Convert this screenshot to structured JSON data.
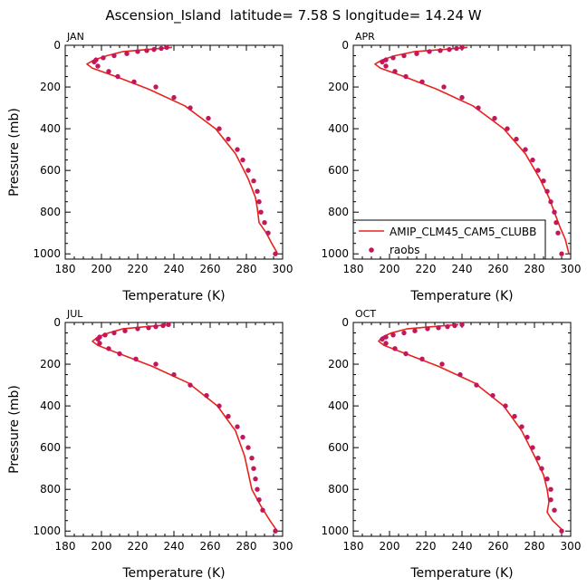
{
  "figure_title": "Ascension_Island  latitude= 7.58 S longitude= 14.24 W",
  "colors": {
    "model": "#e8231e",
    "obs": "#c2185b",
    "axis": "#000000"
  },
  "legend": {
    "model_label": "AMIP_CLM45_CAM5_CLUBB",
    "obs_label": "raobs"
  },
  "chart_data": [
    {
      "type": "line",
      "panel_label": "JAN",
      "xlabel": "Temperature (K)",
      "ylabel": "Pressure (mb)",
      "xlim": [
        180,
        300
      ],
      "ylim": [
        1025,
        0
      ],
      "x_ticks": [
        180,
        200,
        220,
        240,
        260,
        280,
        300
      ],
      "y_ticks": [
        0,
        200,
        400,
        600,
        800,
        1000
      ],
      "series": [
        {
          "name": "AMIP_CLM45_CAM5_CLUBB",
          "kind": "line",
          "x": [
            239,
            226,
            212,
            203,
            196,
            192,
            195,
            208,
            226,
            246,
            263,
            274,
            281,
            285,
            286,
            287,
            291,
            294,
            297
          ],
          "y": [
            10,
            20,
            30,
            50,
            70,
            90,
            110,
            150,
            210,
            290,
            400,
            520,
            640,
            730,
            780,
            850,
            900,
            950,
            995
          ]
        },
        {
          "name": "raobs",
          "kind": "scatter",
          "x": [
            236,
            233,
            229,
            225,
            220,
            214,
            207,
            201,
            197,
            196,
            198,
            204,
            209,
            218,
            230,
            240,
            249,
            259,
            265,
            270,
            275,
            278,
            281,
            284,
            286,
            287,
            288,
            290,
            292,
            296
          ],
          "y": [
            10,
            15,
            20,
            25,
            30,
            40,
            50,
            60,
            70,
            80,
            100,
            125,
            150,
            175,
            200,
            250,
            300,
            350,
            400,
            450,
            500,
            550,
            600,
            650,
            700,
            750,
            800,
            850,
            900,
            1000
          ]
        }
      ]
    },
    {
      "type": "line",
      "panel_label": "APR",
      "xlabel": "Temperature (K)",
      "ylabel": "",
      "xlim": [
        180,
        300
      ],
      "ylim": [
        1025,
        0
      ],
      "x_ticks": [
        180,
        200,
        220,
        240,
        260,
        280,
        300
      ],
      "y_ticks": [
        0,
        200,
        400,
        600,
        800,
        1000
      ],
      "series": [
        {
          "name": "AMIP_CLM45_CAM5_CLUBB",
          "kind": "line",
          "x": [
            243,
            230,
            214,
            203,
            196,
            192,
            195,
            208,
            226,
            246,
            263,
            275,
            283,
            288,
            291,
            294,
            297,
            299
          ],
          "y": [
            10,
            20,
            30,
            50,
            70,
            90,
            110,
            150,
            210,
            290,
            400,
            520,
            640,
            730,
            800,
            870,
            930,
            1000
          ]
        },
        {
          "name": "raobs",
          "kind": "scatter",
          "x": [
            240,
            237,
            233,
            228,
            222,
            215,
            208,
            202,
            198,
            196,
            198,
            203,
            209,
            218,
            230,
            240,
            249,
            258,
            265,
            270,
            275,
            279,
            282,
            285,
            287,
            289,
            291,
            292,
            293,
            295
          ],
          "y": [
            10,
            15,
            20,
            25,
            30,
            40,
            50,
            60,
            70,
            80,
            100,
            125,
            150,
            175,
            200,
            250,
            300,
            350,
            400,
            450,
            500,
            550,
            600,
            650,
            700,
            750,
            800,
            850,
            900,
            1000
          ]
        }
      ]
    },
    {
      "type": "line",
      "panel_label": "JUL",
      "xlabel": "Temperature (K)",
      "ylabel": "Pressure (mb)",
      "xlim": [
        180,
        300
      ],
      "ylim": [
        1025,
        0
      ],
      "x_ticks": [
        180,
        200,
        220,
        240,
        260,
        280,
        300
      ],
      "y_ticks": [
        0,
        200,
        400,
        600,
        800,
        1000
      ],
      "series": [
        {
          "name": "AMIP_CLM45_CAM5_CLUBB",
          "kind": "line",
          "x": [
            238,
            225,
            212,
            204,
            198,
            195,
            198,
            210,
            228,
            248,
            264,
            274,
            279,
            281,
            283,
            288,
            293,
            297
          ],
          "y": [
            10,
            20,
            30,
            50,
            70,
            90,
            110,
            150,
            210,
            290,
            400,
            520,
            640,
            720,
            800,
            880,
            950,
            1000
          ]
        },
        {
          "name": "raobs",
          "kind": "scatter",
          "x": [
            237,
            234,
            230,
            226,
            220,
            213,
            207,
            202,
            199,
            198,
            199,
            204,
            210,
            219,
            230,
            240,
            249,
            258,
            265,
            270,
            275,
            278,
            281,
            283,
            284,
            285,
            286,
            287,
            289,
            296
          ],
          "y": [
            10,
            15,
            20,
            25,
            30,
            40,
            50,
            60,
            70,
            80,
            100,
            125,
            150,
            175,
            200,
            250,
            300,
            350,
            400,
            450,
            500,
            550,
            600,
            650,
            700,
            750,
            800,
            850,
            900,
            1000
          ]
        }
      ]
    },
    {
      "type": "line",
      "panel_label": "OCT",
      "xlabel": "Temperature (K)",
      "ylabel": "",
      "xlim": [
        180,
        300
      ],
      "ylim": [
        1025,
        0
      ],
      "x_ticks": [
        180,
        200,
        220,
        240,
        260,
        280,
        300
      ],
      "y_ticks": [
        0,
        200,
        400,
        600,
        800,
        1000
      ],
      "series": [
        {
          "name": "AMIP_CLM45_CAM5_CLUBB",
          "kind": "line",
          "x": [
            238,
            224,
            210,
            201,
            196,
            194,
            197,
            209,
            227,
            247,
            263,
            273,
            280,
            285,
            287,
            288,
            287,
            290,
            296
          ],
          "y": [
            10,
            20,
            30,
            50,
            70,
            90,
            110,
            150,
            210,
            290,
            400,
            520,
            640,
            730,
            800,
            860,
            910,
            950,
            1000
          ]
        },
        {
          "name": "raobs",
          "kind": "scatter",
          "x": [
            240,
            236,
            232,
            227,
            221,
            214,
            208,
            202,
            198,
            196,
            198,
            203,
            209,
            218,
            229,
            239,
            248,
            257,
            264,
            269,
            273,
            276,
            279,
            282,
            284,
            287,
            289,
            289,
            291,
            295
          ],
          "y": [
            10,
            15,
            20,
            25,
            30,
            40,
            50,
            60,
            70,
            80,
            100,
            125,
            150,
            175,
            200,
            250,
            300,
            350,
            400,
            450,
            500,
            550,
            600,
            650,
            700,
            750,
            800,
            850,
            900,
            1000
          ]
        }
      ]
    }
  ]
}
